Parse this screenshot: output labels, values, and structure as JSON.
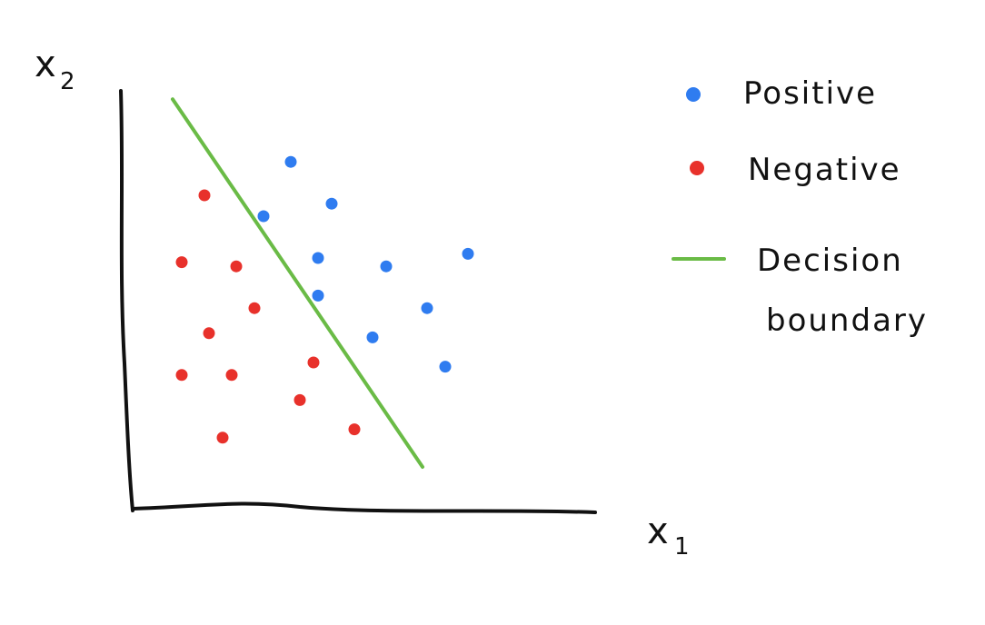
{
  "colors": {
    "positive": "#2f7cf0",
    "negative": "#e8312b",
    "boundary": "#6abb46",
    "axes": "#111111"
  },
  "chart_data": {
    "type": "scatter",
    "title": "",
    "xlabel_letter": "x",
    "xlabel_sub": "1",
    "ylabel_letter": "x",
    "ylabel_sub": "2",
    "xlim": [
      0,
      10
    ],
    "ylim": [
      0,
      10
    ],
    "grid": false,
    "legend_placement": "right",
    "series": [
      {
        "name": "Positive",
        "kind": "points",
        "color": "#2f7cf0",
        "points": [
          [
            3.6,
            8.3
          ],
          [
            4.5,
            7.3
          ],
          [
            3.0,
            7.0
          ],
          [
            7.5,
            6.1
          ],
          [
            4.2,
            6.0
          ],
          [
            5.7,
            5.8
          ],
          [
            4.2,
            5.1
          ],
          [
            6.6,
            4.8
          ],
          [
            5.4,
            4.1
          ],
          [
            7.0,
            3.4
          ]
        ]
      },
      {
        "name": "Negative",
        "kind": "points",
        "color": "#e8312b",
        "points": [
          [
            1.7,
            7.5
          ],
          [
            1.2,
            5.9
          ],
          [
            2.4,
            5.8
          ],
          [
            2.8,
            4.8
          ],
          [
            1.8,
            4.2
          ],
          [
            4.1,
            3.5
          ],
          [
            1.2,
            3.2
          ],
          [
            2.3,
            3.2
          ],
          [
            3.8,
            2.6
          ],
          [
            5.0,
            1.9
          ],
          [
            2.1,
            1.7
          ]
        ]
      },
      {
        "name": "Decision boundary",
        "kind": "line",
        "color": "#6abb46",
        "points": [
          [
            1.0,
            9.8
          ],
          [
            6.5,
            1.0
          ]
        ]
      }
    ],
    "legend": [
      {
        "label": "Positive",
        "marker": "dot",
        "color": "#2f7cf0"
      },
      {
        "label": "Negative",
        "marker": "dot",
        "color": "#e8312b"
      },
      {
        "label_line1": "Decision",
        "label_line2": "boundary",
        "marker": "line",
        "color": "#6abb46"
      }
    ]
  }
}
